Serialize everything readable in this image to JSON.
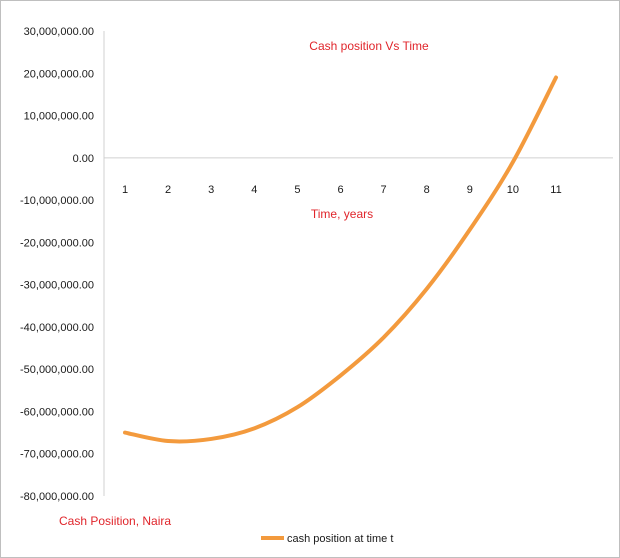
{
  "chart_data": {
    "type": "line",
    "title": "Cash position Vs Time",
    "xlabel": "Time, years",
    "ylabel": "Cash Posiition, Naira",
    "categories": [
      "1",
      "2",
      "3",
      "4",
      "5",
      "6",
      "7",
      "8",
      "9",
      "10",
      "11"
    ],
    "y_ticks": [
      "30,000,000.00",
      "20,000,000.00",
      "10,000,000.00",
      "0.00",
      "-10,000,000.00",
      "-20,000,000.00",
      "-30,000,000.00",
      "-40,000,000.00",
      "-50,000,000.00",
      "-60,000,000.00",
      "-70,000,000.00",
      "-80,000,000.00"
    ],
    "ylim": [
      -80000000,
      30000000
    ],
    "grid": false,
    "legend_position": "bottom",
    "series": [
      {
        "name": "cash position at time t",
        "color": "#f39a3d",
        "values": [
          -65000000,
          -67000000,
          -66500000,
          -64000000,
          -59000000,
          -51500000,
          -42500000,
          -31000000,
          -17000000,
          -1000000,
          19000000
        ]
      }
    ]
  }
}
